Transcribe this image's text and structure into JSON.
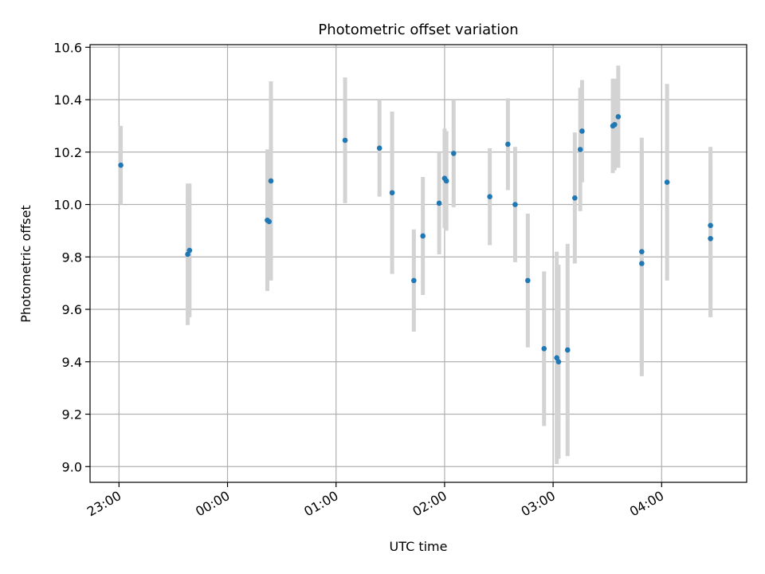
{
  "chart_data": {
    "type": "scatter",
    "title": "Photometric offset variation",
    "xlabel": "UTC time",
    "ylabel": "Photometric offset",
    "xlim": [
      "22:44",
      "04:47"
    ],
    "ylim": [
      8.94,
      10.61
    ],
    "x_ticks": [
      "23:00",
      "00:00",
      "01:00",
      "02:00",
      "03:00",
      "04:00"
    ],
    "y_ticks": [
      9.0,
      9.2,
      9.4,
      9.6,
      9.8,
      10.0,
      10.2,
      10.4,
      10.6
    ],
    "y_tick_labels": [
      "9.0",
      "9.2",
      "9.4",
      "9.6",
      "9.8",
      "10.0",
      "10.2",
      "10.4",
      "10.6"
    ],
    "grid": true,
    "colors": {
      "points": "#1f77b4",
      "errorbars": "#d3d3d3",
      "grid": "#b0b0b0"
    },
    "points": [
      {
        "x": "23:01",
        "y": 10.15,
        "err": 0.15
      },
      {
        "x": "23:38",
        "y": 9.81,
        "err": 0.27
      },
      {
        "x": "23:39",
        "y": 9.825,
        "err": 0.255
      },
      {
        "x": "00:22",
        "y": 9.94,
        "err": 0.27
      },
      {
        "x": "00:23",
        "y": 9.935,
        "err": 0.22
      },
      {
        "x": "00:24",
        "y": 10.09,
        "err": 0.38
      },
      {
        "x": "01:05",
        "y": 10.245,
        "err": 0.24
      },
      {
        "x": "01:24",
        "y": 10.215,
        "err": 0.185
      },
      {
        "x": "01:31",
        "y": 10.045,
        "err": 0.31
      },
      {
        "x": "01:43",
        "y": 9.71,
        "err": 0.195
      },
      {
        "x": "01:48",
        "y": 9.88,
        "err": 0.225
      },
      {
        "x": "01:57",
        "y": 10.005,
        "err": 0.195
      },
      {
        "x": "02:00",
        "y": 10.1,
        "err": 0.19
      },
      {
        "x": "02:01",
        "y": 10.09,
        "err": 0.19
      },
      {
        "x": "02:05",
        "y": 10.195,
        "err": 0.205
      },
      {
        "x": "02:25",
        "y": 10.03,
        "err": 0.185
      },
      {
        "x": "02:35",
        "y": 10.23,
        "err": 0.175
      },
      {
        "x": "02:39",
        "y": 10.0,
        "err": 0.22
      },
      {
        "x": "02:46",
        "y": 9.71,
        "err": 0.255
      },
      {
        "x": "02:55",
        "y": 9.45,
        "err": 0.295
      },
      {
        "x": "03:02",
        "y": 9.415,
        "err": 0.405
      },
      {
        "x": "03:03",
        "y": 9.4,
        "err": 0.37
      },
      {
        "x": "03:08",
        "y": 9.445,
        "err": 0.405
      },
      {
        "x": "03:12",
        "y": 10.025,
        "err": 0.25
      },
      {
        "x": "03:15",
        "y": 10.21,
        "err": 0.235
      },
      {
        "x": "03:16",
        "y": 10.28,
        "err": 0.195
      },
      {
        "x": "03:33",
        "y": 10.3,
        "err": 0.18
      },
      {
        "x": "03:34",
        "y": 10.305,
        "err": 0.175
      },
      {
        "x": "03:36",
        "y": 10.335,
        "err": 0.195
      },
      {
        "x": "03:49",
        "y": 9.82,
        "err": 0.435
      },
      {
        "x": "03:49",
        "y": 9.775,
        "err": 0.43
      },
      {
        "x": "04:03",
        "y": 10.085,
        "err": 0.375
      },
      {
        "x": "04:27",
        "y": 9.92,
        "err": 0.3
      },
      {
        "x": "04:27",
        "y": 9.87,
        "err": 0.3
      }
    ]
  }
}
